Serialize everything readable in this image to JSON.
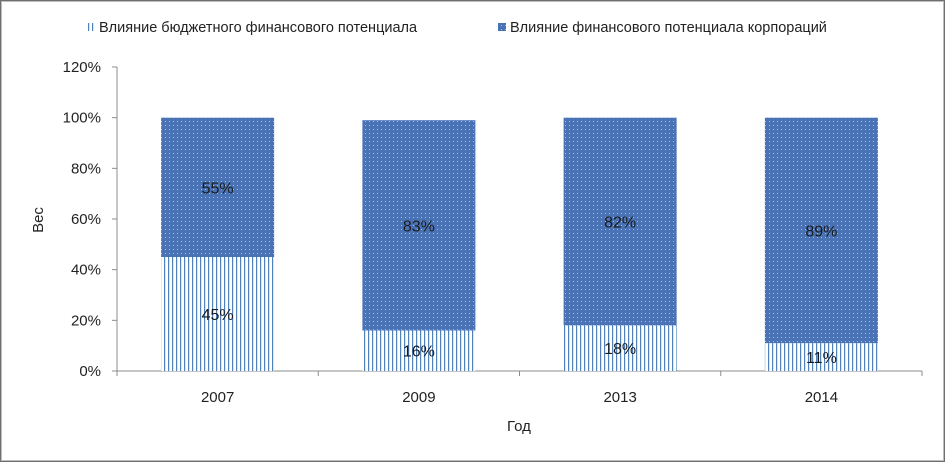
{
  "chart_data": {
    "type": "bar",
    "stacked": true,
    "categories": [
      "2007",
      "2009",
      "2013",
      "2014"
    ],
    "series": [
      {
        "name": "Влияние бюджетного финансового потенциала",
        "values": [
          45,
          16,
          18,
          11
        ],
        "labels": [
          "45%",
          "16%",
          "18%",
          "11%"
        ],
        "pattern": "vertical-lines",
        "color": "#4f81bd"
      },
      {
        "name": "Влияние финансового потенциала корпораций",
        "values": [
          55,
          83,
          82,
          89
        ],
        "labels": [
          "55%",
          "83%",
          "82%",
          "89%"
        ],
        "pattern": "dotted-fill",
        "color": "#4a73b5"
      }
    ],
    "xlabel": "Год",
    "ylabel": "Вес",
    "ylim": [
      0,
      120
    ],
    "yticks": [
      "0%",
      "20%",
      "40%",
      "60%",
      "80%",
      "100%",
      "120%"
    ],
    "grid": false,
    "legend": "top"
  }
}
